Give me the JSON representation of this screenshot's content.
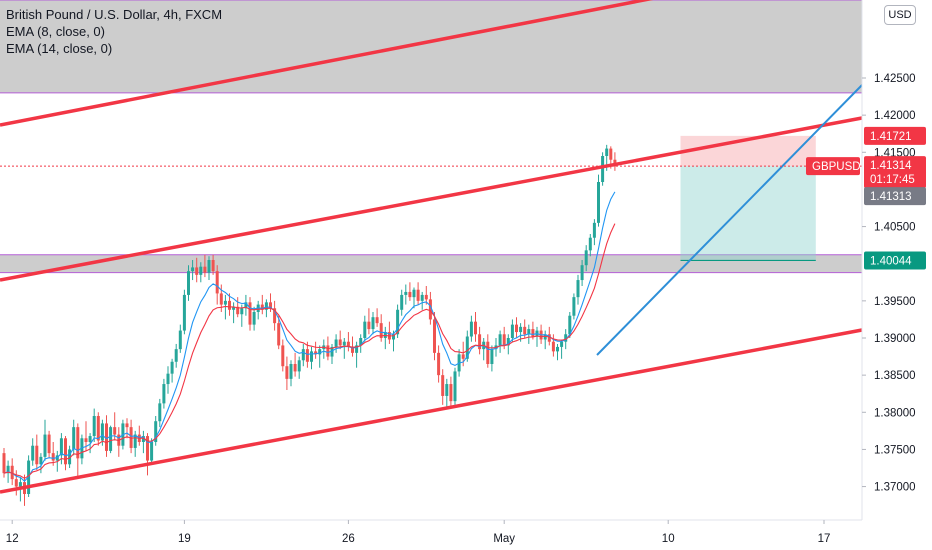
{
  "legend": {
    "symbol_line": "British Pound / U.S. Dollar, 4h, FXCM",
    "ema1": "EMA (8, close, 0)",
    "ema2": "EMA (14, close, 0)"
  },
  "currency_button": "USD",
  "chart_data": {
    "type": "candlestick",
    "title": "British Pound / U.S. Dollar, 4h, FXCM",
    "ylim": [
      1.3655,
      1.4355
    ],
    "y_ticks": [
      "1.42500",
      "1.42000",
      "1.41500",
      "1.40500",
      "1.39500",
      "1.39000",
      "1.38500",
      "1.38000",
      "1.37500",
      "1.37000"
    ],
    "x_ticks": [
      {
        "label": "12",
        "bar": 2
      },
      {
        "label": "19",
        "bar": 44
      },
      {
        "label": "26",
        "bar": 84
      },
      {
        "label": "May",
        "bar": 122
      },
      {
        "label": "10",
        "bar": 162
      },
      {
        "label": "17",
        "bar": 200
      }
    ],
    "bar_count_visible": 216,
    "candles": [
      [
        1.3745,
        1.3752,
        1.3712,
        1.3718
      ],
      [
        1.3718,
        1.3735,
        1.3705,
        1.3728
      ],
      [
        1.3728,
        1.3738,
        1.3702,
        1.371
      ],
      [
        1.371,
        1.3722,
        1.3688,
        1.37
      ],
      [
        1.37,
        1.3712,
        1.368,
        1.3706
      ],
      [
        1.3706,
        1.3716,
        1.3674,
        1.369
      ],
      [
        1.369,
        1.3742,
        1.3686,
        1.3735
      ],
      [
        1.3735,
        1.3765,
        1.3728,
        1.3755
      ],
      [
        1.3755,
        1.377,
        1.3722,
        1.373
      ],
      [
        1.373,
        1.3745,
        1.3718,
        1.374
      ],
      [
        1.374,
        1.379,
        1.3735,
        1.377
      ],
      [
        1.377,
        1.3775,
        1.3738,
        1.3745
      ],
      [
        1.3745,
        1.376,
        1.3728,
        1.3735
      ],
      [
        1.3735,
        1.3748,
        1.372,
        1.3742
      ],
      [
        1.3742,
        1.3772,
        1.373,
        1.3765
      ],
      [
        1.3765,
        1.3768,
        1.3722,
        1.373
      ],
      [
        1.373,
        1.3755,
        1.3725,
        1.375
      ],
      [
        1.375,
        1.379,
        1.3742,
        1.378
      ],
      [
        1.378,
        1.3785,
        1.3712,
        1.3738
      ],
      [
        1.3738,
        1.377,
        1.373,
        1.3765
      ],
      [
        1.3765,
        1.3788,
        1.3748,
        1.376
      ],
      [
        1.376,
        1.3772,
        1.3745,
        1.3768
      ],
      [
        1.3768,
        1.3805,
        1.376,
        1.3795
      ],
      [
        1.3795,
        1.38,
        1.3755,
        1.3762
      ],
      [
        1.3762,
        1.379,
        1.3755,
        1.3785
      ],
      [
        1.3785,
        1.3796,
        1.374,
        1.3748
      ],
      [
        1.3748,
        1.3782,
        1.3745,
        1.378
      ],
      [
        1.378,
        1.38,
        1.3762,
        1.377
      ],
      [
        1.377,
        1.378,
        1.374,
        1.3755
      ],
      [
        1.3755,
        1.379,
        1.375,
        1.3785
      ],
      [
        1.3785,
        1.3792,
        1.3765,
        1.378
      ],
      [
        1.378,
        1.379,
        1.3745,
        1.3752
      ],
      [
        1.3752,
        1.3775,
        1.374,
        1.377
      ],
      [
        1.377,
        1.3782,
        1.3755,
        1.376
      ],
      [
        1.376,
        1.3775,
        1.3745,
        1.3768
      ],
      [
        1.3768,
        1.3772,
        1.3715,
        1.3735
      ],
      [
        1.3735,
        1.3765,
        1.373,
        1.376
      ],
      [
        1.376,
        1.3795,
        1.3755,
        1.3788
      ],
      [
        1.3788,
        1.3818,
        1.378,
        1.3812
      ],
      [
        1.3812,
        1.3845,
        1.3805,
        1.3838
      ],
      [
        1.3838,
        1.3862,
        1.3825,
        1.3852
      ],
      [
        1.3852,
        1.3872,
        1.384,
        1.3868
      ],
      [
        1.3868,
        1.3892,
        1.386,
        1.3885
      ],
      [
        1.3885,
        1.3918,
        1.388,
        1.391
      ],
      [
        1.391,
        1.3965,
        1.3905,
        1.3958
      ],
      [
        1.3958,
        1.3998,
        1.395,
        1.399
      ],
      [
        1.399,
        1.4005,
        1.3978,
        1.3995
      ],
      [
        1.3995,
        1.4008,
        1.3975,
        1.3985
      ],
      [
        1.3985,
        1.4002,
        1.3975,
        1.3996
      ],
      [
        1.3996,
        1.4012,
        1.3982,
        1.3988
      ],
      [
        1.3988,
        1.401,
        1.3978,
        1.4005
      ],
      [
        1.4005,
        1.4012,
        1.3985,
        1.399
      ],
      [
        1.399,
        1.3998,
        1.3945,
        1.396
      ],
      [
        1.396,
        1.3972,
        1.3935,
        1.3945
      ],
      [
        1.3945,
        1.3958,
        1.3925,
        1.395
      ],
      [
        1.395,
        1.396,
        1.393,
        1.3938
      ],
      [
        1.3938,
        1.3948,
        1.392,
        1.3942
      ],
      [
        1.3942,
        1.3955,
        1.3928,
        1.3932
      ],
      [
        1.3932,
        1.3945,
        1.3915,
        1.394
      ],
      [
        1.394,
        1.3958,
        1.393,
        1.3948
      ],
      [
        1.3948,
        1.3955,
        1.391,
        1.3918
      ],
      [
        1.3918,
        1.3942,
        1.391,
        1.3935
      ],
      [
        1.3935,
        1.395,
        1.3925,
        1.3945
      ],
      [
        1.3945,
        1.3958,
        1.3932,
        1.3938
      ],
      [
        1.3938,
        1.3952,
        1.3928,
        1.3948
      ],
      [
        1.3948,
        1.396,
        1.3935,
        1.394
      ],
      [
        1.394,
        1.395,
        1.391,
        1.392
      ],
      [
        1.392,
        1.393,
        1.3885,
        1.389
      ],
      [
        1.389,
        1.3898,
        1.3855,
        1.3862
      ],
      [
        1.3862,
        1.3875,
        1.383,
        1.3845
      ],
      [
        1.3845,
        1.387,
        1.3835,
        1.3865
      ],
      [
        1.3865,
        1.388,
        1.3848,
        1.3855
      ],
      [
        1.3855,
        1.3875,
        1.3845,
        1.387
      ],
      [
        1.387,
        1.3892,
        1.3862,
        1.3885
      ],
      [
        1.3885,
        1.3895,
        1.386,
        1.3868
      ],
      [
        1.3868,
        1.3888,
        1.3858,
        1.3882
      ],
      [
        1.3882,
        1.3895,
        1.3872,
        1.3878
      ],
      [
        1.3878,
        1.389,
        1.386,
        1.3885
      ],
      [
        1.3885,
        1.3898,
        1.3872,
        1.389
      ],
      [
        1.389,
        1.3902,
        1.387,
        1.3875
      ],
      [
        1.3875,
        1.3892,
        1.3865,
        1.3888
      ],
      [
        1.3888,
        1.3905,
        1.388,
        1.3898
      ],
      [
        1.3898,
        1.391,
        1.3885,
        1.389
      ],
      [
        1.389,
        1.39,
        1.3872,
        1.3895
      ],
      [
        1.3895,
        1.3908,
        1.3882,
        1.3888
      ],
      [
        1.3888,
        1.3902,
        1.3875,
        1.388
      ],
      [
        1.388,
        1.3895,
        1.386,
        1.389
      ],
      [
        1.389,
        1.3905,
        1.388,
        1.39
      ],
      [
        1.39,
        1.393,
        1.3895,
        1.3922
      ],
      [
        1.3922,
        1.394,
        1.3905,
        1.3912
      ],
      [
        1.3912,
        1.3935,
        1.3905,
        1.3928
      ],
      [
        1.3928,
        1.394,
        1.3915,
        1.392
      ],
      [
        1.392,
        1.3932,
        1.3895,
        1.39
      ],
      [
        1.39,
        1.3915,
        1.3885,
        1.3908
      ],
      [
        1.3908,
        1.3922,
        1.3892,
        1.3898
      ],
      [
        1.3898,
        1.391,
        1.3882,
        1.3905
      ],
      [
        1.3905,
        1.3945,
        1.39,
        1.3938
      ],
      [
        1.3938,
        1.3965,
        1.393,
        1.3958
      ],
      [
        1.3958,
        1.3972,
        1.3945,
        1.3962
      ],
      [
        1.3962,
        1.3975,
        1.395,
        1.3955
      ],
      [
        1.3955,
        1.3968,
        1.394,
        1.3965
      ],
      [
        1.3965,
        1.3975,
        1.3945,
        1.395
      ],
      [
        1.395,
        1.3962,
        1.3938,
        1.3958
      ],
      [
        1.3958,
        1.397,
        1.3945,
        1.3952
      ],
      [
        1.3952,
        1.3962,
        1.3918,
        1.3925
      ],
      [
        1.3925,
        1.3935,
        1.387,
        1.388
      ],
      [
        1.388,
        1.389,
        1.384,
        1.385
      ],
      [
        1.385,
        1.3858,
        1.381,
        1.3822
      ],
      [
        1.3822,
        1.3845,
        1.3805,
        1.3838
      ],
      [
        1.3838,
        1.3848,
        1.3805,
        1.3815
      ],
      [
        1.3815,
        1.386,
        1.381,
        1.3855
      ],
      [
        1.3855,
        1.3885,
        1.3848,
        1.3878
      ],
      [
        1.3878,
        1.3895,
        1.3862,
        1.3872
      ],
      [
        1.3872,
        1.391,
        1.3868,
        1.3902
      ],
      [
        1.3902,
        1.393,
        1.3895,
        1.3922
      ],
      [
        1.3922,
        1.3935,
        1.3895,
        1.3905
      ],
      [
        1.3905,
        1.3915,
        1.3878,
        1.3885
      ],
      [
        1.3885,
        1.39,
        1.387,
        1.3895
      ],
      [
        1.3895,
        1.3905,
        1.386,
        1.3865
      ],
      [
        1.3865,
        1.389,
        1.3855,
        1.3885
      ],
      [
        1.3885,
        1.39,
        1.3875,
        1.389
      ],
      [
        1.389,
        1.391,
        1.388,
        1.3905
      ],
      [
        1.3905,
        1.3915,
        1.3885,
        1.389
      ],
      [
        1.389,
        1.3905,
        1.3878,
        1.39
      ],
      [
        1.39,
        1.3925,
        1.3895,
        1.3918
      ],
      [
        1.3918,
        1.3928,
        1.39,
        1.3908
      ],
      [
        1.3908,
        1.392,
        1.3895,
        1.3915
      ],
      [
        1.3915,
        1.3925,
        1.39,
        1.3905
      ],
      [
        1.3905,
        1.3918,
        1.3892,
        1.3912
      ],
      [
        1.3912,
        1.3922,
        1.3898,
        1.3902
      ],
      [
        1.3902,
        1.3915,
        1.3888,
        1.391
      ],
      [
        1.391,
        1.3918,
        1.3892,
        1.3898
      ],
      [
        1.3898,
        1.391,
        1.3885,
        1.3905
      ],
      [
        1.3905,
        1.3915,
        1.389,
        1.3895
      ],
      [
        1.3895,
        1.3905,
        1.3875,
        1.3882
      ],
      [
        1.3882,
        1.3892,
        1.387,
        1.3888
      ],
      [
        1.3888,
        1.3898,
        1.3872,
        1.3895
      ],
      [
        1.3895,
        1.3912,
        1.3885,
        1.3905
      ],
      [
        1.3905,
        1.3935,
        1.39,
        1.393
      ],
      [
        1.393,
        1.396,
        1.3925,
        1.3955
      ],
      [
        1.3955,
        1.3985,
        1.3945,
        1.3978
      ],
      [
        1.3978,
        1.4005,
        1.397,
        1.3998
      ],
      [
        1.3998,
        1.4025,
        1.399,
        1.4018
      ],
      [
        1.4018,
        1.404,
        1.401,
        1.4035
      ],
      [
        1.4035,
        1.406,
        1.4025,
        1.4055
      ],
      [
        1.4055,
        1.412,
        1.405,
        1.411
      ],
      [
        1.411,
        1.415,
        1.4105,
        1.4145
      ],
      [
        1.4145,
        1.416,
        1.4125,
        1.4155
      ],
      [
        1.4155,
        1.4158,
        1.4128,
        1.414
      ],
      [
        1.414,
        1.415,
        1.4125,
        1.4131
      ]
    ],
    "ema8": "EMA (8, close, 0)",
    "ema14": "EMA (14, close, 0)",
    "horizontal_zones": [
      {
        "from": 1.423,
        "to": 1.4355
      },
      {
        "from": 1.3988,
        "to": 1.4012
      }
    ],
    "position": {
      "entry": 1.41314,
      "stop": 1.41721,
      "target": 1.40044
    },
    "price_tags": [
      {
        "label": "1.41721",
        "value": 1.41721,
        "color": "#f23645"
      },
      {
        "label": "GBPUSD",
        "value": 1.41314,
        "color": "#f23645"
      },
      {
        "label": "1.41314",
        "value": 1.41314,
        "color": "#f23645"
      },
      {
        "label": "01:17:45",
        "value": 1.41314,
        "color": "#f23645"
      },
      {
        "label": "1.41313",
        "value": 1.41313,
        "color": "#787b86"
      },
      {
        "label": "1.40044",
        "value": 1.40044,
        "color": "#089981"
      }
    ],
    "colors": {
      "up": "#26a69a",
      "down": "#ef5350",
      "ema8": "#2196f3",
      "ema14": "#f23645",
      "trend_line": "#f23645",
      "blue_line": "#2e8fd8",
      "zone": "#c8c8c8",
      "zone_border": "#b45fd6"
    }
  }
}
